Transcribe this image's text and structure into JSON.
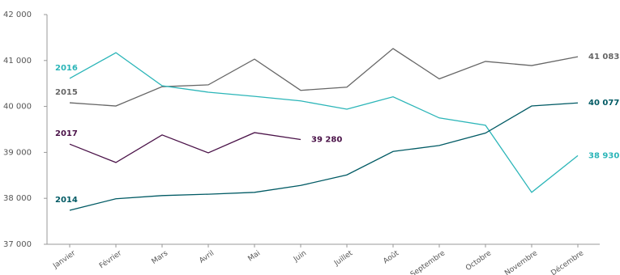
{
  "chart_data": {
    "type": "line",
    "categories": [
      "Janvier",
      "Février",
      "Mars",
      "Avril",
      "Mai",
      "Juin",
      "Juillet",
      "Août",
      "Septembre",
      "Octobre",
      "Novembre",
      "Décembre"
    ],
    "series": [
      {
        "name": "2015",
        "color": "#666666",
        "values": [
          40080,
          40010,
          40430,
          40470,
          41030,
          40350,
          40420,
          41260,
          40600,
          40980,
          40890,
          41083
        ],
        "value_labels": [
          null,
          null,
          null,
          null,
          null,
          null,
          null,
          null,
          null,
          null,
          null,
          "41 083"
        ]
      },
      {
        "name": "2016",
        "color": "#2bb5b8",
        "values": [
          40610,
          41170,
          40450,
          40310,
          40220,
          40120,
          39940,
          40210,
          39750,
          39590,
          38130,
          38930
        ],
        "value_labels": [
          null,
          null,
          null,
          null,
          null,
          null,
          null,
          null,
          null,
          null,
          null,
          "38 930"
        ]
      },
      {
        "name": "2014",
        "color": "#005a64",
        "values": [
          37740,
          37990,
          38060,
          38090,
          38130,
          38280,
          38510,
          39020,
          39150,
          39420,
          40010,
          40077
        ],
        "value_labels": [
          null,
          null,
          null,
          null,
          null,
          null,
          null,
          null,
          null,
          null,
          null,
          "40 077"
        ]
      },
      {
        "name": "2017",
        "color": "#4a1248",
        "values": [
          39180,
          38780,
          39380,
          38990,
          39430,
          39280,
          null,
          null,
          null,
          null,
          null,
          null
        ],
        "value_labels": [
          null,
          null,
          null,
          null,
          null,
          "39 280",
          null,
          null,
          null,
          null,
          null,
          null
        ]
      }
    ],
    "ylim": [
      37000,
      42000
    ],
    "yticks": [
      {
        "value": 37000,
        "label": "37 000"
      },
      {
        "value": 38000,
        "label": "38 000"
      },
      {
        "value": 39000,
        "label": "39 000"
      },
      {
        "value": 40000,
        "label": "40 000"
      },
      {
        "value": 41000,
        "label": "41 000"
      },
      {
        "value": 42000,
        "label": "42 000"
      }
    ],
    "grid": false
  }
}
